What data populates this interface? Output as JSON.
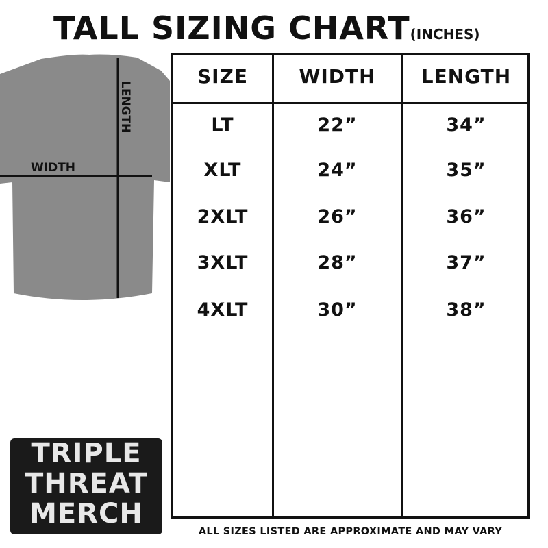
{
  "title": "TALL SIZING CHART",
  "unit": "(INCHES)",
  "diagram": {
    "width_label": "WIDTH",
    "length_label": "LENGTH",
    "shirt_color": "#8a8a8a"
  },
  "table": {
    "headers": [
      "SIZE",
      "WIDTH",
      "LENGTH"
    ],
    "rows": [
      [
        "LT",
        "22”",
        "34”"
      ],
      [
        "XLT",
        "24”",
        "35”"
      ],
      [
        "2XLT",
        "26”",
        "36”"
      ],
      [
        "3XLT",
        "28”",
        "37”"
      ],
      [
        "4XLT",
        "30”",
        "38”"
      ]
    ]
  },
  "logo": {
    "lines": [
      "TRIPLE",
      "THREAT",
      "MERCH"
    ]
  },
  "footer": "ALL SIZES LISTED ARE APPROXIMATE AND MAY VARY"
}
